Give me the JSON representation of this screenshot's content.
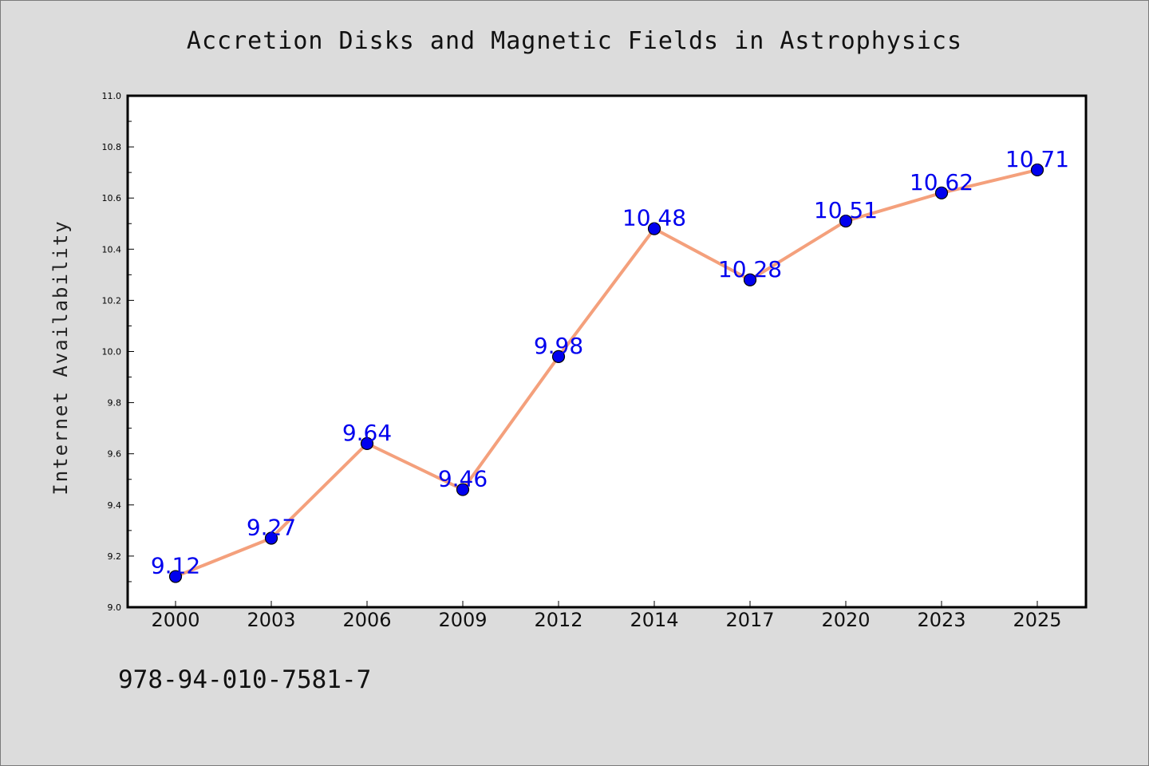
{
  "chart_data": {
    "type": "line",
    "title": "Accretion Disks and Magnetic Fields in Astrophysics",
    "xlabel": "",
    "ylabel": "Internet Availability",
    "categories": [
      "2000",
      "2003",
      "2006",
      "2009",
      "2012",
      "2014",
      "2017",
      "2020",
      "2023",
      "2025"
    ],
    "series": [
      {
        "values": [
          9.12,
          9.27,
          9.64,
          9.46,
          9.98,
          10.48,
          10.28,
          10.51,
          10.62,
          10.71
        ],
        "data_labels": [
          "9.12",
          "9.27",
          "9.64",
          "9.46",
          "9.98",
          "10.48",
          "10.28",
          "10.51",
          "10.62",
          "10.71"
        ],
        "line_color": "#f4a07c",
        "marker_color": "#0000ee",
        "label_color": "#0000ee"
      }
    ],
    "ylim": [
      9.0,
      11.0
    ],
    "yticks": [
      "9.0",
      "9.2",
      "9.4",
      "9.6",
      "9.8",
      "10.0",
      "10.2",
      "10.4",
      "10.6",
      "10.8",
      "11.0"
    ],
    "grid": false,
    "legend": "none"
  },
  "footer": {
    "code": "978-94-010-7581-7"
  }
}
